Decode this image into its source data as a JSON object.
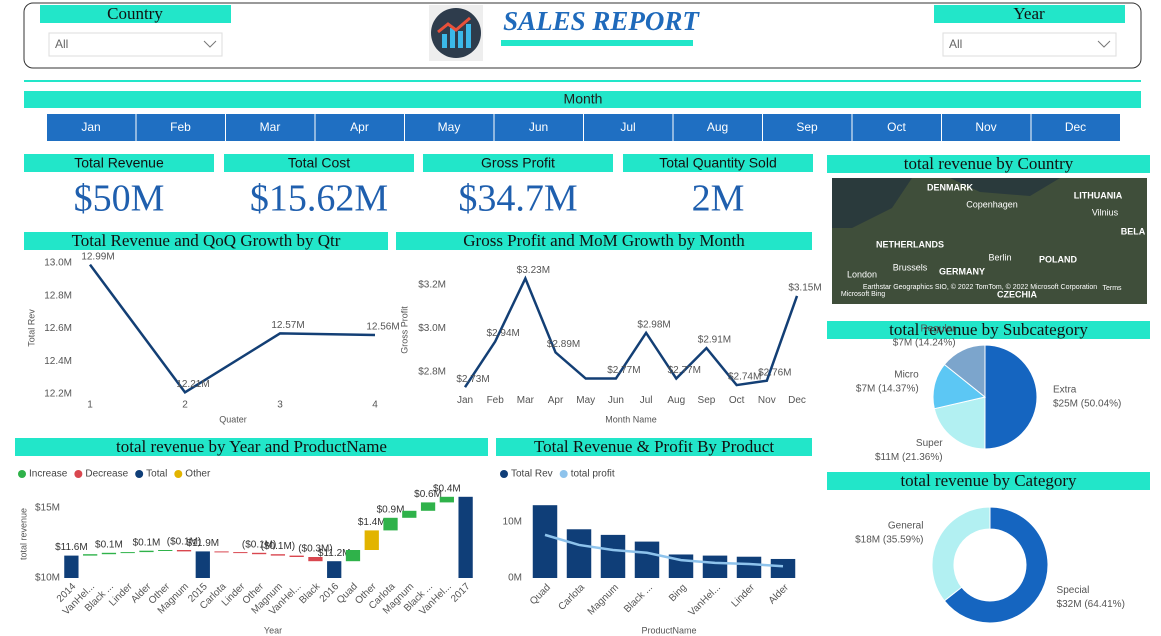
{
  "header": {
    "title": "SALES REPORT",
    "filters": [
      {
        "label": "Country",
        "value": "All"
      },
      {
        "label": "Year",
        "value": "All"
      }
    ]
  },
  "month_slicer": {
    "title": "Month",
    "months": [
      "Jan",
      "Feb",
      "Mar",
      "Apr",
      "May",
      "Jun",
      "Jul",
      "Aug",
      "Sep",
      "Oct",
      "Nov",
      "Dec"
    ]
  },
  "kpis": [
    {
      "label": "Total Revenue",
      "value": "$50M"
    },
    {
      "label": "Total Cost",
      "value": "$15.62M"
    },
    {
      "label": "Gross Profit",
      "value": "$34.7M"
    },
    {
      "label": "Total Quantity Sold",
      "value": "2M"
    }
  ],
  "map": {
    "title": "total revenue by Country",
    "labels": [
      "DENMARK",
      "Copenhagen",
      "LITHUANIA",
      "Vilnius",
      "BELA",
      "NETHERLANDS",
      "London",
      "Brussels",
      "GERMANY",
      "Berlin",
      "POLAND",
      "CZECHIA",
      "Microsoft Bing",
      "Earthstar Geographics SIO, © 2022 TomTom, © 2022 Microsoft Corporation",
      "Terms"
    ]
  },
  "chart_data": [
    {
      "type": "line",
      "title": "Total Revenue and QoQ Growth by Qtr",
      "x_label": "Quater",
      "y_label": "Total Rev",
      "categories": [
        "1",
        "2",
        "3",
        "4"
      ],
      "values": [
        12.99,
        12.21,
        12.57,
        12.56
      ],
      "value_labels": [
        "12.99M",
        "12.21M",
        "12.57M",
        "12.56M"
      ],
      "color": "#133f75",
      "ylim": [
        12.2,
        13.0
      ],
      "yticks": [
        {
          "value": 12.2,
          "label": "12.2M"
        },
        {
          "value": 12.4,
          "label": "12.4M"
        },
        {
          "value": 12.6,
          "label": "12.6M"
        },
        {
          "value": 12.8,
          "label": "12.8M"
        },
        {
          "value": 13.0,
          "label": "13.0M"
        }
      ],
      "grid": false
    },
    {
      "type": "line",
      "title": "Gross Profit and MoM Growth by Month",
      "x_label": "Month Name",
      "y_label": "Gross Profit",
      "categories": [
        "Jan",
        "Feb",
        "Mar",
        "Apr",
        "May",
        "Jun",
        "Jul",
        "Aug",
        "Sep",
        "Oct",
        "Nov",
        "Dec"
      ],
      "values": [
        2.73,
        2.94,
        3.23,
        2.89,
        2.77,
        2.77,
        2.98,
        2.77,
        2.91,
        2.74,
        2.76,
        3.15
      ],
      "value_labels": [
        "$2.73M",
        "$2.94M",
        "$3.23M",
        "$2.89M",
        null,
        "$2.77M",
        "$2.98M",
        "$2.77M",
        "$2.91M",
        "$2.74M",
        "$2.76M",
        "$3.15M"
      ],
      "color": "#133f75",
      "ylim": [
        2.72,
        3.27
      ],
      "yticks": [
        {
          "value": 2.8,
          "label": "$2.8M"
        },
        {
          "value": 3.0,
          "label": "$3.0M"
        },
        {
          "value": 3.2,
          "label": "$3.2M"
        }
      ],
      "grid": false
    },
    {
      "type": "waterfall",
      "title": "total revenue by Year and ProductName",
      "x_label": "Year",
      "y_label": "total revenue",
      "legend": [
        {
          "name": "Increase",
          "color": "#2fb24a"
        },
        {
          "name": "Decrease",
          "color": "#d9474f"
        },
        {
          "name": "Total",
          "color": "#0f3e78"
        },
        {
          "name": "Other",
          "color": "#e2b400"
        }
      ],
      "categories": [
        "2014",
        "VanHel...",
        "Black ...",
        "Linder",
        "Alder",
        "Other",
        "Magnum",
        "2015",
        "Carlota",
        "Linder",
        "Other",
        "Magnum",
        "VanHel...",
        "Black",
        "2016",
        "Quad",
        "Other",
        "Carlota",
        "Magnum",
        "Black ...",
        "VanHel...",
        "2017"
      ],
      "kinds": [
        "Total",
        "Increase",
        "Increase",
        "Increase",
        "Increase",
        "Increase",
        "Decrease",
        "Total",
        "Decrease",
        "Decrease",
        "Decrease",
        "Decrease",
        "Decrease",
        "Decrease",
        "Total",
        "Increase",
        "Other",
        "Increase",
        "Increase",
        "Increase",
        "Increase",
        "Total"
      ],
      "values": [
        11.6,
        0.1,
        0.1,
        0.05,
        0.1,
        0.05,
        -0.1,
        11.9,
        -0.05,
        -0.05,
        -0.1,
        -0.1,
        -0.1,
        -0.3,
        11.2,
        0.8,
        1.4,
        0.9,
        0.5,
        0.6,
        0.4,
        15.8
      ],
      "value_labels": [
        "$11.6M",
        null,
        "$0.1M",
        null,
        "$0.1M",
        null,
        "($0.1M)",
        "$11.9M",
        null,
        null,
        "($0.1M)",
        "($0.1M)",
        null,
        "($0.3M)",
        "$11.2M",
        null,
        "$1.4M",
        "$0.9M",
        null,
        "$0.6M",
        "$0.4M",
        null
      ],
      "ylim": [
        10,
        16.3
      ],
      "yticks": [
        {
          "value": 10,
          "label": "$10M"
        },
        {
          "value": 15,
          "label": "$15M"
        }
      ],
      "grid": false
    },
    {
      "type": "bar_line",
      "title": "Total Revenue & Profit By Product",
      "x_label": "ProductName",
      "categories": [
        "Quad",
        "Carlota",
        "Magnum",
        "Black ...",
        "Bing",
        "VanHel...",
        "Linder",
        "Alder"
      ],
      "series": [
        {
          "name": "Total Rev",
          "color": "#0f3e78",
          "values": [
            13.0,
            8.7,
            7.7,
            6.5,
            4.2,
            4.0,
            3.8,
            3.4
          ]
        },
        {
          "name": "total profit",
          "color": "#8ec3ec",
          "values": [
            7.7,
            5.9,
            5.0,
            4.5,
            3.2,
            2.7,
            2.5,
            2.1
          ]
        }
      ],
      "ylim": [
        0,
        13.5
      ],
      "yticks": [
        {
          "value": 0,
          "label": "0M"
        },
        {
          "value": 10,
          "label": "10M"
        }
      ],
      "grid": false
    },
    {
      "type": "pie",
      "title": "total revenue by Subcategory",
      "categories": [
        "Extra",
        "Super",
        "Micro",
        "Regular"
      ],
      "values": [
        50.04,
        21.36,
        14.37,
        14.24
      ],
      "value_labels": [
        "$25M (50.04%)",
        "$11M (21.36%)",
        "$7M (14.37%)",
        "$7M (14.24%)"
      ],
      "colors": [
        "#1565c0",
        "#b2f0f2",
        "#5cc7f4",
        "#7ca5cc"
      ]
    },
    {
      "type": "donut",
      "title": "total revenue by Category",
      "categories": [
        "Special",
        "General"
      ],
      "values": [
        64.41,
        35.59
      ],
      "value_labels": [
        "$32M (64.41%)",
        "$18M (35.59%)"
      ],
      "colors": [
        "#1565c0",
        "#b2f0f2"
      ]
    }
  ]
}
